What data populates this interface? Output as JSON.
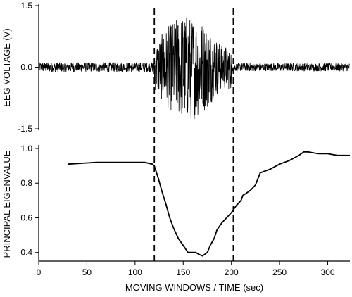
{
  "chart_data": [
    {
      "type": "line",
      "title": "",
      "xlabel": "",
      "ylabel": "EEG VOLTAGE (V)",
      "ylim": [
        -1.5,
        1.5
      ],
      "y_ticks": [
        "1.5",
        "0.0",
        "-1.5"
      ],
      "x_shared_with_lower_panel": true,
      "grid": false,
      "legend": "none",
      "series": [
        {
          "description_segments": [
            {
              "t_start": 0,
              "t_end": 120,
              "amplitude_v": 0.12
            },
            {
              "t_start": 120,
              "t_end": 200,
              "amplitude_v": 1.3
            },
            {
              "t_start": 200,
              "t_end": 323,
              "amplitude_v": 0.1
            }
          ]
        }
      ],
      "markers": [
        {
          "type": "vline",
          "x": 120,
          "style": "dashed"
        },
        {
          "type": "vline",
          "x": 202,
          "style": "dashed"
        }
      ]
    },
    {
      "type": "line",
      "title": "",
      "xlabel": "MOVING WINDOWS / TIME (sec)",
      "ylabel": "PRINCIPAL EIGENVALUE",
      "xlim": [
        0,
        323
      ],
      "ylim": [
        0.35,
        1.0
      ],
      "x_ticks": [
        "0",
        "50",
        "100",
        "150",
        "200",
        "250",
        "300"
      ],
      "y_ticks": [
        "1.0",
        "0.8",
        "0.6",
        "0.4"
      ],
      "grid": false,
      "legend": "none",
      "series": [
        {
          "x": [
            30,
            60,
            90,
            110,
            118,
            120,
            124,
            128,
            132,
            136,
            140,
            145,
            150,
            155,
            160,
            163,
            166,
            170,
            175,
            178,
            182,
            185,
            190,
            195,
            200,
            205,
            210,
            212,
            215,
            220,
            225,
            230,
            240,
            250,
            260,
            270,
            275,
            280,
            290,
            300,
            310,
            323
          ],
          "y": [
            0.91,
            0.92,
            0.92,
            0.92,
            0.91,
            0.9,
            0.83,
            0.75,
            0.68,
            0.6,
            0.54,
            0.48,
            0.44,
            0.4,
            0.4,
            0.4,
            0.39,
            0.38,
            0.4,
            0.44,
            0.48,
            0.53,
            0.57,
            0.6,
            0.63,
            0.67,
            0.7,
            0.73,
            0.74,
            0.76,
            0.79,
            0.86,
            0.88,
            0.91,
            0.93,
            0.96,
            0.98,
            0.98,
            0.97,
            0.97,
            0.96,
            0.96
          ]
        }
      ],
      "markers": [
        {
          "type": "vline",
          "x": 120,
          "style": "dashed"
        },
        {
          "type": "vline",
          "x": 202,
          "style": "dashed"
        }
      ]
    }
  ]
}
